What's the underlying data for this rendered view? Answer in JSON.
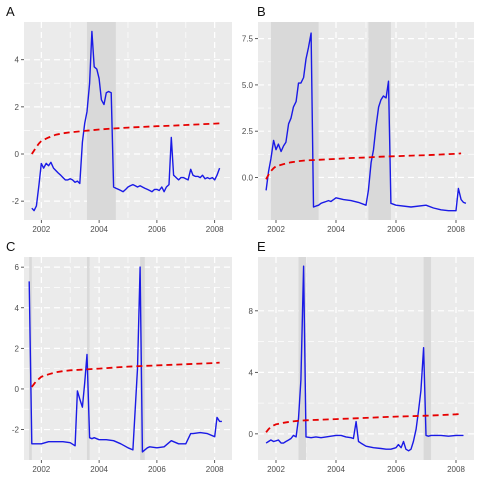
{
  "colors": {
    "panel_bg": "#ebebeb",
    "grid": "#ffffff",
    "shade": "#d9d9d9",
    "series_solid": "#1a1ae6",
    "series_dashed": "#e60000"
  },
  "chart_data": [
    {
      "type": "line",
      "title": "A",
      "xlim": [
        2001.4,
        2008.6
      ],
      "ylim": [
        -2.8,
        5.6
      ],
      "xticks": [
        2002,
        2004,
        2006,
        2008
      ],
      "xtick_labels": [
        "2002",
        "2004",
        "2006",
        "2008"
      ],
      "yticks": [
        -2,
        0,
        2,
        4
      ],
      "ytick_labels": [
        "-2",
        "0",
        "2",
        "4"
      ],
      "shaded_ranges": [
        [
          2003.58,
          2004.58
        ]
      ],
      "series": [
        {
          "style": "solid",
          "x": [
            2001.67,
            2001.75,
            2001.83,
            2001.92,
            2002.0,
            2002.08,
            2002.17,
            2002.25,
            2002.33,
            2002.42,
            2002.5,
            2002.58,
            2002.67,
            2002.75,
            2002.83,
            2002.92,
            2003.0,
            2003.08,
            2003.17,
            2003.25,
            2003.33,
            2003.42,
            2003.5,
            2003.58,
            2003.67,
            2003.75,
            2003.83,
            2003.92,
            2004.0,
            2004.08,
            2004.17,
            2004.25,
            2004.33,
            2004.42,
            2004.5,
            2004.58,
            2004.67,
            2004.75,
            2004.83,
            2004.92,
            2005.0,
            2005.08,
            2005.17,
            2005.25,
            2005.33,
            2005.42,
            2005.5,
            2005.58,
            2005.67,
            2005.75,
            2005.83,
            2005.92,
            2006.0,
            2006.08,
            2006.17,
            2006.25,
            2006.33,
            2006.42,
            2006.5,
            2006.58,
            2006.67,
            2006.75,
            2006.83,
            2006.92,
            2007.0,
            2007.08,
            2007.17,
            2007.25,
            2007.33,
            2007.42,
            2007.5,
            2007.58,
            2007.67,
            2007.75,
            2007.83,
            2007.92,
            2008.0,
            2008.08,
            2008.17
          ],
          "y": [
            -2.3,
            -2.4,
            -2.2,
            -1.3,
            -0.4,
            -0.6,
            -0.4,
            -0.5,
            -0.35,
            -0.6,
            -0.7,
            -0.8,
            -0.9,
            -1.0,
            -1.1,
            -1.1,
            -1.05,
            -1.1,
            -1.2,
            -1.15,
            -1.25,
            0.5,
            1.3,
            1.8,
            3.0,
            5.2,
            3.7,
            3.6,
            3.2,
            2.3,
            2.1,
            2.6,
            2.65,
            2.6,
            -1.4,
            -1.45,
            -1.5,
            -1.55,
            -1.6,
            -1.5,
            -1.4,
            -1.35,
            -1.3,
            -1.35,
            -1.4,
            -1.35,
            -1.4,
            -1.45,
            -1.5,
            -1.55,
            -1.6,
            -1.5,
            -1.5,
            -1.55,
            -1.4,
            -1.6,
            -1.4,
            -1.3,
            0.7,
            -0.9,
            -1.0,
            -1.1,
            -1.0,
            -1.0,
            -1.05,
            -1.1,
            -0.65,
            -0.9,
            -0.95,
            -0.95,
            -1.0,
            -0.9,
            -1.05,
            -1.0,
            -1.05,
            -1.0,
            -1.1,
            -0.9,
            -0.6
          ]
        },
        {
          "style": "dashed",
          "x": [
            2001.67,
            2001.75,
            2001.83,
            2001.92,
            2002.0,
            2002.25,
            2002.5,
            2002.75,
            2003.0,
            2003.5,
            2004.0,
            2004.5,
            2005.0,
            2005.5,
            2006.0,
            2006.5,
            2007.0,
            2007.5,
            2008.0,
            2008.17
          ],
          "y": [
            0.0,
            0.15,
            0.3,
            0.45,
            0.55,
            0.7,
            0.82,
            0.88,
            0.92,
            0.98,
            1.04,
            1.08,
            1.12,
            1.15,
            1.18,
            1.2,
            1.23,
            1.26,
            1.29,
            1.3
          ]
        }
      ]
    },
    {
      "type": "line",
      "title": "B",
      "xlim": [
        2001.4,
        2008.6
      ],
      "ylim": [
        -2.3,
        8.4
      ],
      "xticks": [
        2002,
        2004,
        2006,
        2008
      ],
      "xtick_labels": [
        "2002",
        "2004",
        "2006",
        "2008"
      ],
      "yticks": [
        0.0,
        2.5,
        5.0,
        7.5
      ],
      "ytick_labels": [
        "0.0",
        "2.5",
        "5.0",
        "7.5"
      ],
      "shaded_ranges": [
        [
          2001.83,
          2003.42
        ],
        [
          2005.08,
          2005.83
        ]
      ],
      "series": [
        {
          "style": "solid",
          "x": [
            2001.67,
            2001.75,
            2001.83,
            2001.92,
            2002.0,
            2002.08,
            2002.17,
            2002.25,
            2002.33,
            2002.42,
            2002.5,
            2002.58,
            2002.67,
            2002.75,
            2002.83,
            2002.92,
            2003.0,
            2003.08,
            2003.17,
            2003.25,
            2003.33,
            2003.42,
            2003.5,
            2003.58,
            2003.67,
            2003.75,
            2003.83,
            2003.92,
            2004.0,
            2004.25,
            2004.5,
            2004.75,
            2005.0,
            2005.08,
            2005.17,
            2005.25,
            2005.33,
            2005.42,
            2005.5,
            2005.58,
            2005.67,
            2005.75,
            2005.83,
            2005.92,
            2006.0,
            2006.5,
            2007.0,
            2007.25,
            2007.5,
            2007.75,
            2008.0,
            2008.08,
            2008.17,
            2008.25,
            2008.33
          ],
          "y": [
            -0.7,
            0.3,
            1.0,
            2.0,
            1.5,
            1.8,
            1.4,
            1.7,
            1.9,
            2.9,
            3.2,
            3.8,
            4.1,
            5.1,
            5.1,
            5.4,
            6.4,
            7.0,
            7.8,
            -1.6,
            -1.55,
            -1.5,
            -1.4,
            -1.35,
            -1.3,
            -1.25,
            -1.3,
            -1.2,
            -1.1,
            -1.2,
            -1.25,
            -1.35,
            -1.5,
            -0.7,
            0.8,
            1.5,
            2.7,
            3.8,
            4.2,
            4.4,
            4.3,
            5.2,
            -1.4,
            -1.45,
            -1.5,
            -1.6,
            -1.5,
            -1.65,
            -1.75,
            -1.8,
            -1.8,
            -0.6,
            -1.2,
            -1.35,
            -1.4
          ]
        },
        {
          "style": "dashed",
          "x": [
            2001.67,
            2001.75,
            2001.83,
            2001.92,
            2002.0,
            2002.25,
            2002.5,
            2002.75,
            2003.0,
            2003.5,
            2004.0,
            2004.5,
            2005.0,
            2005.5,
            2006.0,
            2006.5,
            2007.0,
            2007.5,
            2008.0,
            2008.17
          ],
          "y": [
            -0.1,
            0.15,
            0.35,
            0.5,
            0.6,
            0.72,
            0.82,
            0.88,
            0.92,
            0.96,
            1.0,
            1.05,
            1.08,
            1.12,
            1.15,
            1.18,
            1.2,
            1.24,
            1.28,
            1.3
          ]
        }
      ]
    },
    {
      "type": "line",
      "title": "C",
      "xlim": [
        2001.4,
        2008.6
      ],
      "ylim": [
        -3.5,
        6.5
      ],
      "xticks": [
        2002,
        2004,
        2006,
        2008
      ],
      "xtick_labels": [
        "2002",
        "2004",
        "2006",
        "2008"
      ],
      "yticks": [
        -2,
        0,
        2,
        4,
        6
      ],
      "ytick_labels": [
        "-2",
        "0",
        "2",
        "4",
        "6"
      ],
      "shaded_ranges": [
        [
          2001.58,
          2001.67
        ],
        [
          2003.58,
          2003.67
        ],
        [
          2005.42,
          2005.58
        ]
      ],
      "series": [
        {
          "style": "solid",
          "x": [
            2001.58,
            2001.67,
            2001.75,
            2001.83,
            2001.92,
            2002.0,
            2002.25,
            2002.5,
            2002.75,
            2003.0,
            2003.17,
            2003.25,
            2003.33,
            2003.42,
            2003.5,
            2003.58,
            2003.67,
            2003.75,
            2003.83,
            2004.0,
            2004.25,
            2004.5,
            2004.75,
            2005.0,
            2005.17,
            2005.25,
            2005.33,
            2005.42,
            2005.5,
            2005.58,
            2005.67,
            2005.75,
            2006.0,
            2006.25,
            2006.5,
            2006.75,
            2007.0,
            2007.17,
            2007.25,
            2007.5,
            2007.75,
            2008.0,
            2008.08,
            2008.17,
            2008.25
          ],
          "y": [
            5.3,
            -2.7,
            -2.7,
            -2.7,
            -2.7,
            -2.7,
            -2.6,
            -2.6,
            -2.6,
            -2.65,
            -2.8,
            -0.1,
            -0.5,
            -0.9,
            0.3,
            1.7,
            -2.4,
            -2.45,
            -2.4,
            -2.5,
            -2.5,
            -2.55,
            -2.7,
            -2.9,
            -3.0,
            -1.0,
            1.0,
            6.0,
            -3.1,
            -3.0,
            -2.9,
            -2.85,
            -2.9,
            -2.85,
            -2.55,
            -2.7,
            -2.7,
            -2.2,
            -2.2,
            -2.15,
            -2.2,
            -2.35,
            -1.4,
            -1.6,
            -1.6
          ]
        },
        {
          "style": "dashed",
          "x": [
            2001.67,
            2001.75,
            2001.83,
            2001.92,
            2002.0,
            2002.25,
            2002.5,
            2002.75,
            2003.0,
            2003.5,
            2004.0,
            2004.5,
            2005.0,
            2005.5,
            2006.0,
            2006.5,
            2007.0,
            2007.5,
            2008.0,
            2008.17
          ],
          "y": [
            0.1,
            0.25,
            0.4,
            0.5,
            0.6,
            0.72,
            0.82,
            0.88,
            0.92,
            0.96,
            1.0,
            1.05,
            1.1,
            1.13,
            1.16,
            1.19,
            1.22,
            1.25,
            1.28,
            1.3
          ]
        }
      ]
    },
    {
      "type": "line",
      "title": "E",
      "xlim": [
        2001.4,
        2008.6
      ],
      "ylim": [
        -1.7,
        11.5
      ],
      "xticks": [
        2002,
        2004,
        2006,
        2008
      ],
      "xtick_labels": [
        "2002",
        "2004",
        "2006",
        "2008"
      ],
      "yticks": [
        0,
        4,
        8
      ],
      "ytick_labels": [
        "0",
        "4",
        "8"
      ],
      "shaded_ranges": [
        [
          2002.75,
          2003.0
        ],
        [
          2006.92,
          2007.17
        ]
      ],
      "series": [
        {
          "style": "solid",
          "x": [
            2001.67,
            2001.75,
            2001.83,
            2001.92,
            2002.0,
            2002.08,
            2002.17,
            2002.25,
            2002.33,
            2002.42,
            2002.5,
            2002.58,
            2002.67,
            2002.75,
            2002.83,
            2002.92,
            2003.0,
            2003.17,
            2003.33,
            2003.5,
            2003.67,
            2003.83,
            2004.0,
            2004.17,
            2004.33,
            2004.5,
            2004.58,
            2004.67,
            2004.75,
            2004.83,
            2005.0,
            2005.25,
            2005.5,
            2005.67,
            2005.83,
            2006.0,
            2006.08,
            2006.17,
            2006.25,
            2006.33,
            2006.42,
            2006.5,
            2006.58,
            2006.67,
            2006.75,
            2006.83,
            2006.92,
            2007.0,
            2007.08,
            2007.17,
            2007.5,
            2007.75,
            2008.0,
            2008.17,
            2008.25
          ],
          "y": [
            -0.6,
            -0.5,
            -0.4,
            -0.5,
            -0.45,
            -0.4,
            -0.6,
            -0.6,
            -0.5,
            -0.4,
            -0.3,
            -0.1,
            -0.2,
            1.0,
            3.5,
            10.9,
            -0.2,
            -0.25,
            -0.2,
            -0.25,
            -0.2,
            -0.15,
            -0.1,
            -0.1,
            -0.2,
            -0.25,
            -0.3,
            0.8,
            -0.5,
            -0.6,
            -0.8,
            -0.9,
            -0.95,
            -1.0,
            -1.0,
            -0.9,
            -0.7,
            -0.9,
            -0.5,
            -1.0,
            -1.1,
            -1.0,
            -0.5,
            0.3,
            1.5,
            2.8,
            5.6,
            -0.1,
            -0.15,
            -0.1,
            -0.1,
            -0.15,
            -0.1,
            -0.1,
            -0.1
          ]
        },
        {
          "style": "dashed",
          "x": [
            2001.67,
            2001.75,
            2001.83,
            2001.92,
            2002.0,
            2002.25,
            2002.5,
            2002.75,
            2003.0,
            2003.5,
            2004.0,
            2004.5,
            2005.0,
            2005.5,
            2006.0,
            2006.5,
            2007.0,
            2007.5,
            2008.0,
            2008.17
          ],
          "y": [
            0.1,
            0.3,
            0.45,
            0.55,
            0.62,
            0.72,
            0.8,
            0.85,
            0.88,
            0.92,
            0.96,
            1.0,
            1.04,
            1.08,
            1.12,
            1.15,
            1.18,
            1.22,
            1.27,
            1.3
          ]
        }
      ]
    }
  ]
}
